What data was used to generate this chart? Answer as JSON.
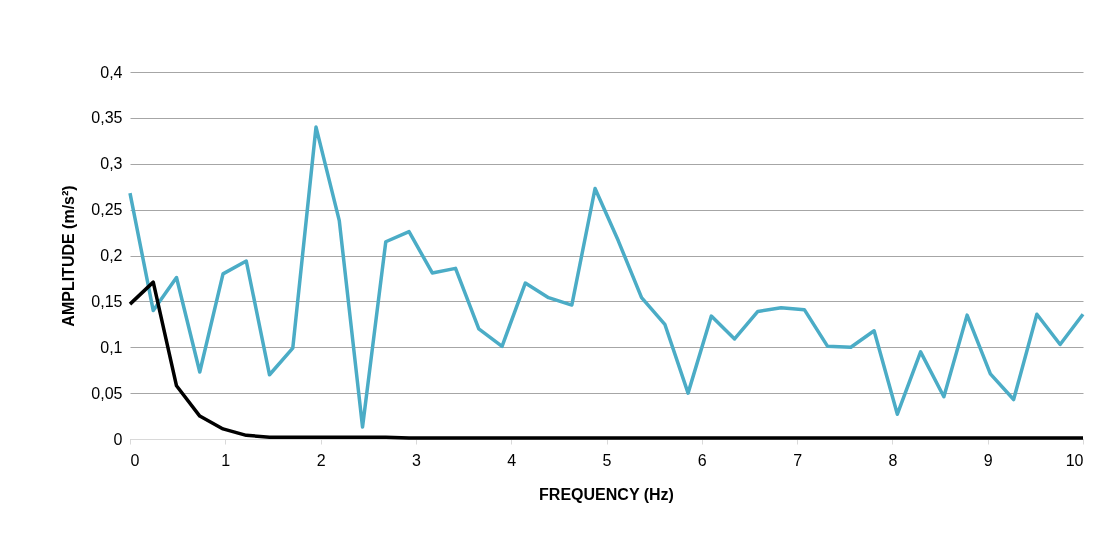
{
  "chart_data": {
    "type": "line",
    "xlabel": "FREQUENCY (Hz)",
    "ylabel": "AMPLITUDE (m/s²)",
    "x": [
      0,
      0.244,
      0.488,
      0.732,
      0.976,
      1.22,
      1.464,
      1.708,
      1.952,
      2.196,
      2.44,
      2.684,
      2.928,
      3.172,
      3.416,
      3.66,
      3.904,
      4.148,
      4.392,
      4.636,
      4.88,
      5.124,
      5.368,
      5.612,
      5.856,
      6.1,
      6.344,
      6.588,
      6.832,
      7.076,
      7.32,
      7.564,
      7.808,
      8.052,
      8.296,
      8.54,
      8.784,
      9.028,
      9.272,
      9.516,
      9.76,
      10
    ],
    "series": [
      {
        "color": "#4bacc6",
        "values": [
          0.268,
          0.14,
          0.176,
          0.073,
          0.18,
          0.194,
          0.07,
          0.099,
          0.34,
          0.238,
          0.013,
          0.215,
          0.226,
          0.181,
          0.186,
          0.12,
          0.101,
          0.17,
          0.154,
          0.146,
          0.273,
          0.216,
          0.154,
          0.125,
          0.05,
          0.134,
          0.109,
          0.139,
          0.143,
          0.141,
          0.101,
          0.1,
          0.118,
          0.027,
          0.095,
          0.046,
          0.135,
          0.071,
          0.043,
          0.136,
          0.103,
          0.136
        ]
      },
      {
        "color": "#000000",
        "values": [
          0.147,
          0.171,
          0.058,
          0.025,
          0.011,
          0.004,
          0.002,
          0.002,
          0.002,
          0.002,
          0.002,
          0.002,
          0.001,
          0.001,
          0.001,
          0.001,
          0.001,
          0.001,
          0.001,
          0.001,
          0.001,
          0.001,
          0.001,
          0.001,
          0.001,
          0.001,
          0.001,
          0.001,
          0.001,
          0.001,
          0.001,
          0.001,
          0.001,
          0.001,
          0.001,
          0.001,
          0.001,
          0.001,
          0.001,
          0.001,
          0.001,
          0.001
        ]
      }
    ],
    "xlim": [
      0,
      10
    ],
    "xticks": [
      0,
      1,
      2,
      3,
      4,
      5,
      6,
      7,
      8,
      9,
      10
    ],
    "ylim": [
      0,
      0.4
    ],
    "yticks": [
      0,
      {
        "value": 0.05,
        "label": "0,05"
      },
      {
        "value": 0.1,
        "label": "0,1"
      },
      {
        "value": 0.15,
        "label": "0,15"
      },
      {
        "value": 0.2,
        "label": "0,2"
      },
      {
        "value": 0.25,
        "label": "0,25"
      },
      {
        "value": 0.3,
        "label": "0,3"
      },
      {
        "value": 0.35,
        "label": "0,35"
      },
      {
        "value": 0.4,
        "label": "0,4"
      }
    ],
    "grid": "y",
    "marker": "none",
    "line_style": "solid"
  }
}
